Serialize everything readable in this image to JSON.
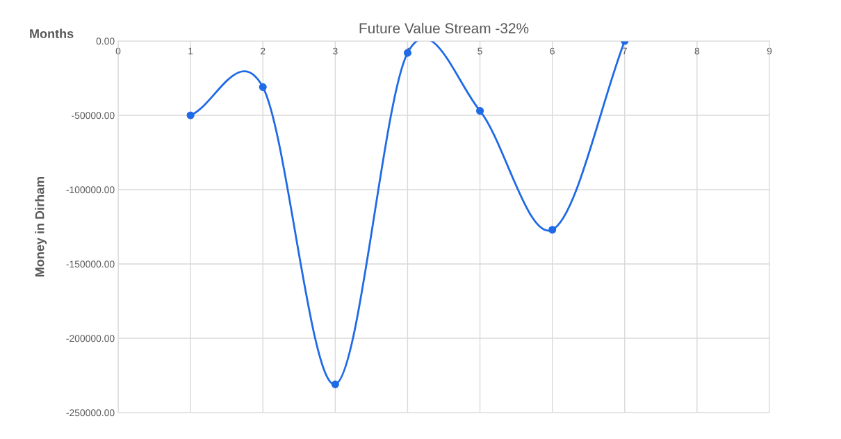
{
  "chart_data": {
    "type": "line",
    "title": "Future Value Stream -32%",
    "xlabel": "Months",
    "ylabel": "Money in Dirham",
    "x": [
      1,
      2,
      3,
      4,
      5,
      6,
      7
    ],
    "series": [
      {
        "color": "#1f6ae6",
        "values": [
          -50000,
          -31000,
          -231000,
          -8000,
          -47000,
          -127000,
          0
        ]
      }
    ],
    "xlim": [
      0,
      9
    ],
    "xticks": [
      0,
      1,
      2,
      3,
      4,
      5,
      6,
      7,
      8,
      9
    ],
    "ylim": [
      -250000,
      0
    ],
    "yticks": [
      {
        "value": -250000,
        "label": "-250000.00"
      },
      {
        "value": -200000,
        "label": "-200000.00"
      },
      {
        "value": -150000,
        "label": "-150000.00"
      },
      {
        "value": -100000,
        "label": "-100000.00"
      },
      {
        "value": -50000,
        "label": "-50000.00"
      },
      {
        "value": 0,
        "label": "0.00"
      }
    ],
    "grid": true,
    "marker": "circle",
    "line_style": "solid"
  }
}
